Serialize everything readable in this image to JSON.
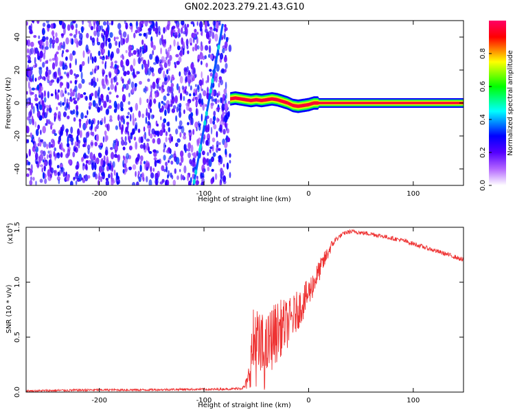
{
  "title": "GN02.2023.279.21.43.G10",
  "chart_data": [
    {
      "type": "heatmap",
      "xlabel": "Height of straight line (km)",
      "ylabel": "Frequency (Hz)",
      "xlim": [
        -270,
        148
      ],
      "ylim": [
        -50,
        50
      ],
      "xticks": [
        -200,
        -100,
        0,
        100
      ],
      "yticks": [
        -40,
        -20,
        0,
        20,
        40
      ],
      "colorbar": {
        "label": "Normalized spectral amplitude",
        "range": [
          0.0,
          1.0
        ],
        "ticks": [
          0.0,
          0.2,
          0.4,
          0.6,
          0.8
        ],
        "colormap": [
          "#ffffff",
          "#b366ff",
          "#5500ff",
          "#0000ff",
          "#00ffff",
          "#00ff00",
          "#ffff00",
          "#ff0000",
          "#ff0066"
        ]
      },
      "features": {
        "noise_region_x": [
          -270,
          -75
        ],
        "noise_level": 0.3,
        "diagonal_line": {
          "x": [
            -110,
            -82
          ],
          "y": [
            -50,
            48
          ],
          "level": 0.35
        },
        "signal_band": {
          "x": [
            -75,
            148
          ],
          "y_center": 0,
          "level": 0.95,
          "center_offsets": [
            [
              -75,
              2.5
            ],
            [
              -70,
              3
            ],
            [
              -65,
              2.5
            ],
            [
              -60,
              2
            ],
            [
              -55,
              1.5
            ],
            [
              -50,
              2
            ],
            [
              -45,
              1.5
            ],
            [
              -40,
              2
            ],
            [
              -35,
              2.5
            ],
            [
              -30,
              2
            ],
            [
              -25,
              1
            ],
            [
              -20,
              0
            ],
            [
              -15,
              -1.5
            ],
            [
              -10,
              -2
            ],
            [
              -5,
              -1.5
            ],
            [
              0,
              -1
            ],
            [
              5,
              0
            ],
            [
              148,
              0
            ]
          ]
        }
      }
    },
    {
      "type": "line",
      "xlabel": "Height of straight line (km)",
      "ylabel": "SNR (10 * v/v)",
      "y_multiplier": "(x10",
      "y_exponent": "4",
      "y_multiplier_close": ")",
      "xlim": [
        -270,
        148
      ],
      "ylim": [
        0.0,
        1.5
      ],
      "xticks": [
        -200,
        -100,
        0,
        100
      ],
      "yticks": [
        0.0,
        0.5,
        1.0,
        1.5
      ],
      "ytick_labels": [
        "0.0",
        "0.5",
        "1.0",
        "1.5"
      ],
      "series": [
        {
          "color": "#ee3333",
          "x": [
            -270,
            -240,
            -200,
            -160,
            -120,
            -90,
            -70,
            -62,
            -58,
            -55,
            -52,
            -50,
            -48,
            -45,
            -42,
            -40,
            -35,
            -30,
            -25,
            -20,
            -15,
            -10,
            -5,
            0,
            5,
            10,
            15,
            20,
            25,
            30,
            35,
            40,
            45,
            50,
            60,
            70,
            80,
            90,
            100,
            110,
            120,
            130,
            140,
            148
          ],
          "y": [
            0.01,
            0.015,
            0.02,
            0.02,
            0.025,
            0.025,
            0.03,
            0.04,
            0.1,
            0.3,
            0.45,
            0.5,
            0.35,
            0.42,
            0.3,
            0.4,
            0.5,
            0.55,
            0.6,
            0.62,
            0.68,
            0.75,
            0.82,
            0.9,
            1.0,
            1.1,
            1.2,
            1.3,
            1.38,
            1.42,
            1.45,
            1.46,
            1.46,
            1.45,
            1.44,
            1.42,
            1.4,
            1.38,
            1.35,
            1.32,
            1.29,
            1.26,
            1.23,
            1.2
          ],
          "noise": [
            0.01,
            0.01,
            0.01,
            0.01,
            0.01,
            0.01,
            0.01,
            0.02,
            0.08,
            0.25,
            0.4,
            0.45,
            0.35,
            0.35,
            0.3,
            0.3,
            0.3,
            0.28,
            0.25,
            0.22,
            0.2,
            0.18,
            0.16,
            0.14,
            0.12,
            0.1,
            0.08,
            0.06,
            0.03,
            0.02,
            0.02,
            0.02,
            0.02,
            0.02,
            0.02,
            0.02,
            0.02,
            0.02,
            0.02,
            0.02,
            0.02,
            0.02,
            0.02,
            0.02
          ]
        }
      ]
    }
  ]
}
